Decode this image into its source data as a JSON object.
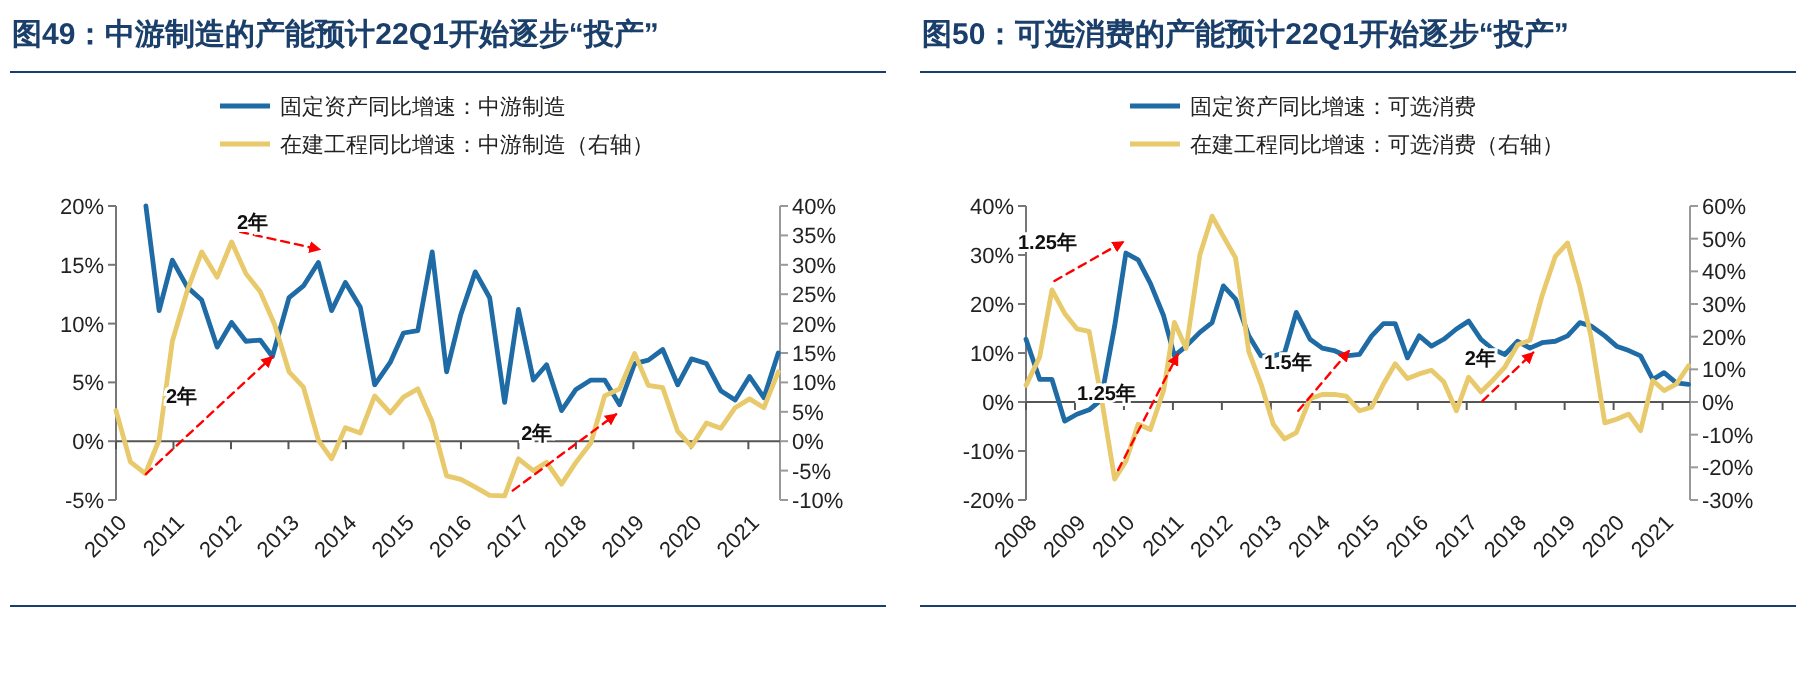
{
  "chart_data": [
    {
      "type": "line",
      "title": "图49：中游制造的产能预计22Q1开始逐步“投产”",
      "legend": "top",
      "grid": false,
      "xlim": [
        2010,
        2021.55
      ],
      "xticks": [
        2010,
        2011,
        2012,
        2013,
        2014,
        2015,
        2016,
        2017,
        2018,
        2019,
        2020,
        2021
      ],
      "ylim": [
        -5,
        20
      ],
      "yticks": [
        {
          "value": -5,
          "label": "-5%"
        },
        {
          "value": 0,
          "label": "0%"
        },
        {
          "value": 5,
          "label": "5%"
        },
        {
          "value": 10,
          "label": "10%"
        },
        {
          "value": 15,
          "label": "15%"
        },
        {
          "value": 20,
          "label": "20%"
        }
      ],
      "y2lim": [
        -10,
        40
      ],
      "y2ticks": [
        {
          "value": -10,
          "label": "-10%"
        },
        {
          "value": -5,
          "label": "-5%"
        },
        {
          "value": 0,
          "label": "0%"
        },
        {
          "value": 5,
          "label": "5%"
        },
        {
          "value": 10,
          "label": "10%"
        },
        {
          "value": 15,
          "label": "15%"
        },
        {
          "value": 20,
          "label": "20%"
        },
        {
          "value": 25,
          "label": "25%"
        },
        {
          "value": 30,
          "label": "30%"
        },
        {
          "value": 35,
          "label": "35%"
        },
        {
          "value": 40,
          "label": "40%"
        }
      ],
      "series": [
        {
          "name": "固定资产同比增速：中游制造",
          "color": "#1f6ba5",
          "x": [
            2010.52,
            2010.75,
            2010.98,
            2011.24,
            2011.49,
            2011.76,
            2012.01,
            2012.26,
            2012.51,
            2012.72,
            2013.01,
            2013.26,
            2013.52,
            2013.75,
            2013.99,
            2014.25,
            2014.5,
            2014.77,
            2015.0,
            2015.25,
            2015.5,
            2015.75,
            2016.0,
            2016.25,
            2016.5,
            2016.76,
            2017.0,
            2017.26,
            2017.49,
            2017.75,
            2018.0,
            2018.26,
            2018.5,
            2018.76,
            2019.02,
            2019.26,
            2019.51,
            2019.77,
            2020.01,
            2020.27,
            2020.52,
            2020.77,
            2021.02,
            2021.27,
            2021.52
          ],
          "values": [
            20,
            11.1,
            15.4,
            13.1,
            12.0,
            8.0,
            10.1,
            8.5,
            8.6,
            7.2,
            12.2,
            13.2,
            15.2,
            11.1,
            13.5,
            11.4,
            4.8,
            6.7,
            9.2,
            9.4,
            16.1,
            5.9,
            10.8,
            14.4,
            12.2,
            3.3,
            11.2,
            5.2,
            6.5,
            2.6,
            4.4,
            5.2,
            5.2,
            3.1,
            6.6,
            6.9,
            7.8,
            4.8,
            7.0,
            6.6,
            4.3,
            3.5,
            5.5,
            3.7,
            7.5
          ]
        },
        {
          "name": "在建工程同比增速：中游制造（右轴）",
          "color": "#e8c96b",
          "axis": "y2",
          "x": [
            2010.0,
            2010.25,
            2010.51,
            2010.75,
            2010.98,
            2011.24,
            2011.49,
            2011.76,
            2012.01,
            2012.26,
            2012.51,
            2012.76,
            2013.01,
            2013.26,
            2013.52,
            2013.75,
            2013.99,
            2014.25,
            2014.5,
            2014.77,
            2015.0,
            2015.25,
            2015.5,
            2015.75,
            2016.0,
            2016.25,
            2016.5,
            2016.76,
            2017.0,
            2017.26,
            2017.49,
            2017.75,
            2018.0,
            2018.26,
            2018.5,
            2018.76,
            2019.02,
            2019.26,
            2019.51,
            2019.77,
            2020.01,
            2020.27,
            2020.52,
            2020.77,
            2021.02,
            2021.27,
            2021.52
          ],
          "values": [
            5.2,
            -3.5,
            -5.5,
            0.2,
            17.0,
            25.6,
            32.2,
            27.9,
            33.9,
            28.5,
            25.4,
            19.8,
            11.8,
            9.2,
            0.2,
            -3.0,
            2.3,
            1.4,
            7.7,
            4.8,
            7.5,
            8.9,
            3.3,
            -5.9,
            -6.5,
            -7.8,
            -9.2,
            -9.3,
            -3.0,
            -5.0,
            -3.6,
            -7.3,
            -3.6,
            -0.3,
            7.7,
            8.9,
            14.9,
            9.5,
            9.1,
            1.7,
            -0.9,
            3.1,
            2.2,
            5.7,
            7.2,
            5.7,
            11.8
          ]
        },
        {
          "type": "line",
          "color": "#ff0000",
          "line_style": "dashed",
          "x": [
            2010.52,
            2012.72
          ],
          "values": [
            -2.8,
            7.2
          ]
        },
        {
          "type": "line",
          "color": "#ff0000",
          "line_style": "dashed",
          "x": [
            2012.16,
            2013.55
          ],
          "values": [
            17.8,
            16.3
          ]
        },
        {
          "type": "line",
          "color": "#ff0000",
          "line_style": "dashed",
          "x": [
            2016.9,
            2018.7
          ],
          "values": [
            -4.2,
            2.3
          ]
        }
      ],
      "ref_lines": [
        {
          "axis": "y",
          "value": 0,
          "color": "#555555"
        }
      ],
      "annotations": [
        "2年",
        "2年",
        "2年"
      ]
    },
    {
      "type": "line",
      "title": "图50：可选消费的产能预计22Q1开始逐步“投产”",
      "legend": "top",
      "grid": false,
      "xlim": [
        2008,
        2021.56
      ],
      "xticks": [
        2008,
        2009,
        2010,
        2011,
        2012,
        2013,
        2014,
        2015,
        2016,
        2017,
        2018,
        2019,
        2020,
        2021
      ],
      "ylim": [
        -20,
        40
      ],
      "yticks": [
        {
          "value": -20,
          "label": "-20%"
        },
        {
          "value": -10,
          "label": "-10%"
        },
        {
          "value": 0,
          "label": "0%"
        },
        {
          "value": 10,
          "label": "10%"
        },
        {
          "value": 20,
          "label": "20%"
        },
        {
          "value": 30,
          "label": "30%"
        },
        {
          "value": 40,
          "label": "40%"
        }
      ],
      "y2lim": [
        -30,
        60
      ],
      "y2ticks": [
        {
          "value": -30,
          "label": "-30%"
        },
        {
          "value": -20,
          "label": "-20%"
        },
        {
          "value": -10,
          "label": "-10%"
        },
        {
          "value": 0,
          "label": "0%"
        },
        {
          "value": 10,
          "label": "10%"
        },
        {
          "value": 20,
          "label": "20%"
        },
        {
          "value": 30,
          "label": "30%"
        },
        {
          "value": 40,
          "label": "40%"
        },
        {
          "value": 50,
          "label": "50%"
        },
        {
          "value": 60,
          "label": "60%"
        }
      ],
      "series": [
        {
          "name": "固定资产同比增速：可选消费",
          "color": "#1f6ba5",
          "x": [
            2008.0,
            2008.28,
            2008.53,
            2008.79,
            2009.04,
            2009.29,
            2009.53,
            2009.81,
            2010.04,
            2010.29,
            2010.54,
            2010.81,
            2011.03,
            2011.27,
            2011.55,
            2011.8,
            2012.03,
            2012.28,
            2012.55,
            2012.8,
            2013.05,
            2013.28,
            2013.52,
            2013.8,
            2014.05,
            2014.29,
            2014.54,
            2014.81,
            2015.06,
            2015.3,
            2015.54,
            2015.79,
            2016.03,
            2016.28,
            2016.53,
            2016.79,
            2017.04,
            2017.29,
            2017.53,
            2017.78,
            2018.04,
            2018.29,
            2018.54,
            2018.81,
            2019.06,
            2019.31,
            2019.54,
            2019.82,
            2020.06,
            2020.31,
            2020.55,
            2020.8,
            2021.03,
            2021.28,
            2021.53
          ],
          "values": [
            12.8,
            4.6,
            4.6,
            -3.9,
            -2.5,
            -1.6,
            0.4,
            15.5,
            30.4,
            29.0,
            24.2,
            17.6,
            9.4,
            11.4,
            14.2,
            16.2,
            23.7,
            21.0,
            13.5,
            9.4,
            9.4,
            10.0,
            18.3,
            12.8,
            11.0,
            10.5,
            9.4,
            9.7,
            13.5,
            16.0,
            16.0,
            9.0,
            13.5,
            11.4,
            12.8,
            14.9,
            16.5,
            12.8,
            10.8,
            9.7,
            12.4,
            11.0,
            12.1,
            12.4,
            13.5,
            16.2,
            15.5,
            13.5,
            11.4,
            10.5,
            9.4,
            4.6,
            6.0,
            3.9,
            3.6
          ]
        },
        {
          "name": "在建工程同比增速：可选消费（右轴）",
          "color": "#e8c96b",
          "axis": "y2",
          "x": [
            2008.0,
            2008.28,
            2008.53,
            2008.79,
            2009.04,
            2009.29,
            2009.56,
            2009.81,
            2010.04,
            2010.29,
            2010.54,
            2010.81,
            2011.03,
            2011.27,
            2011.55,
            2011.8,
            2012.03,
            2012.28,
            2012.55,
            2012.8,
            2013.05,
            2013.28,
            2013.52,
            2013.8,
            2014.05,
            2014.29,
            2014.54,
            2014.81,
            2015.06,
            2015.3,
            2015.54,
            2015.79,
            2016.03,
            2016.28,
            2016.53,
            2016.79,
            2017.04,
            2017.29,
            2017.53,
            2017.78,
            2018.04,
            2018.29,
            2018.54,
            2018.81,
            2019.06,
            2019.31,
            2019.54,
            2019.82,
            2020.06,
            2020.31,
            2020.55,
            2020.8,
            2021.03,
            2021.28,
            2021.53
          ],
          "values": [
            5.1,
            13.8,
            34.3,
            27.1,
            22.4,
            21.6,
            -0.6,
            -23.6,
            -18.1,
            -6.8,
            -8.4,
            3.5,
            24.4,
            16.4,
            45.0,
            56.9,
            50.7,
            44.1,
            15.4,
            5.5,
            -6.8,
            -11.3,
            -9.4,
            1.0,
            2.3,
            2.3,
            1.8,
            -2.7,
            -1.6,
            5.5,
            11.7,
            7.2,
            8.6,
            9.7,
            6.2,
            -2.7,
            7.6,
            3.1,
            6.6,
            10.7,
            17.5,
            18.9,
            32.6,
            44.6,
            48.7,
            35.3,
            19.9,
            -6.4,
            -5.3,
            -3.7,
            -8.8,
            6.6,
            3.5,
            5.5,
            11.1
          ]
        },
        {
          "type": "line",
          "color": "#ff0000",
          "line_style": "dashed",
          "x": [
            2008.58,
            2009.99
          ],
          "values": [
            24.7,
            32.7
          ]
        },
        {
          "type": "line",
          "color": "#ff0000",
          "line_style": "dashed",
          "x": [
            2009.88,
            2011.1
          ],
          "values": [
            -13.9,
            9.7
          ]
        },
        {
          "type": "line",
          "color": "#ff0000",
          "line_style": "dashed",
          "x": [
            2013.56,
            2014.6
          ],
          "values": [
            -1.8,
            10.5
          ]
        },
        {
          "type": "line",
          "color": "#ff0000",
          "line_style": "dashed",
          "x": [
            2017.32,
            2018.36
          ],
          "values": [
            0.2,
            10.1
          ]
        }
      ],
      "ref_lines": [
        {
          "axis": "y",
          "value": 0,
          "color": "#555555"
        }
      ],
      "annotations": [
        "1.25年",
        "1.25年",
        "1.5年",
        "2年"
      ]
    }
  ]
}
